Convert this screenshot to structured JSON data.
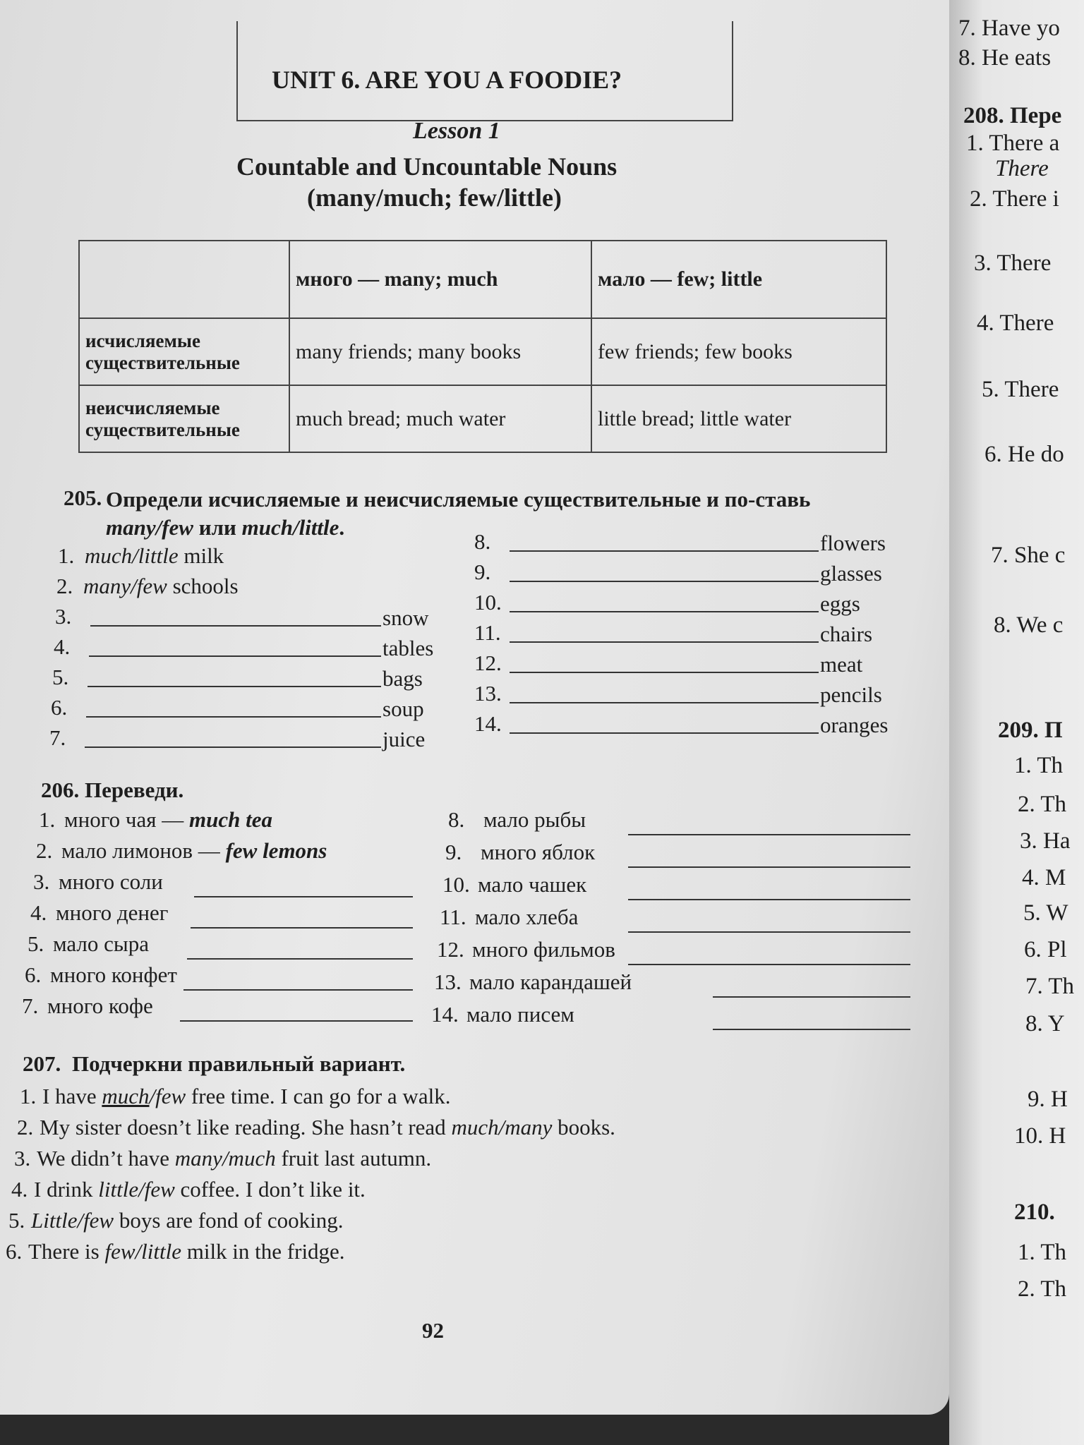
{
  "header": {
    "unit": "UNIT 6. ARE YOU A FOODIE?",
    "lesson": "Lesson 1",
    "title": "Countable and Uncountable Nouns",
    "subtitle": "(many/much; few/little)"
  },
  "table": {
    "columns": [
      "много — many; much",
      "мало — few; little"
    ],
    "rows": [
      {
        "label": "исчисляемые существительные",
        "cells": [
          "many friends; many books",
          "few friends; few books"
        ]
      },
      {
        "label": "неисчисляемые существительные",
        "cells": [
          "much bread; much water",
          "little bread; little water"
        ]
      }
    ]
  },
  "ex205": {
    "number": "205.",
    "instruction": [
      {
        "text": "Определи исчисляемые и неисчисляемые существительные и по-ставь "
      },
      {
        "text": "many/few",
        "italic": true
      },
      {
        "text": " или "
      },
      {
        "text": "much/little",
        "italic": true
      },
      {
        "text": "."
      }
    ],
    "items": [
      {
        "num": "1.",
        "answer": "much/little",
        "noun": "milk"
      },
      {
        "num": "2.",
        "answer": "many/few",
        "noun": "schools"
      },
      {
        "num": "3.",
        "noun": "snow"
      },
      {
        "num": "4.",
        "noun": "tables"
      },
      {
        "num": "5.",
        "noun": "bags"
      },
      {
        "num": "6.",
        "noun": "soup"
      },
      {
        "num": "7.",
        "noun": "juice"
      },
      {
        "num": "8.",
        "noun": "flowers"
      },
      {
        "num": "9.",
        "noun": "glasses"
      },
      {
        "num": "10.",
        "noun": "eggs"
      },
      {
        "num": "11.",
        "noun": "chairs"
      },
      {
        "num": "12.",
        "noun": "meat"
      },
      {
        "num": "13.",
        "noun": "pencils"
      },
      {
        "num": "14.",
        "noun": "oranges"
      }
    ]
  },
  "ex206": {
    "number": "206.",
    "instruction": "Переведи.",
    "items": [
      {
        "num": "1.",
        "ru": "много чая —",
        "answer": "much tea"
      },
      {
        "num": "2.",
        "ru": "мало лимонов —",
        "answer": "few lemons"
      },
      {
        "num": "3.",
        "ru": "много соли"
      },
      {
        "num": "4.",
        "ru": "много денег"
      },
      {
        "num": "5.",
        "ru": "мало сыра"
      },
      {
        "num": "6.",
        "ru": "много конфет"
      },
      {
        "num": "7.",
        "ru": "много кофе"
      },
      {
        "num": "8.",
        "ru": "мало рыбы"
      },
      {
        "num": "9.",
        "ru": "много яблок"
      },
      {
        "num": "10.",
        "ru": "мало чашек"
      },
      {
        "num": "11.",
        "ru": "мало хлеба"
      },
      {
        "num": "12.",
        "ru": "много фильмов"
      },
      {
        "num": "13.",
        "ru": "мало карандашей"
      },
      {
        "num": "14.",
        "ru": "мало писем"
      }
    ]
  },
  "ex207": {
    "number": "207.",
    "instruction": "Подчеркни правильный вариант.",
    "sentences": [
      {
        "num": "1.",
        "parts": [
          {
            "text": "I have "
          },
          {
            "text": "much",
            "italic": true,
            "underline": true
          },
          {
            "text": "/few",
            "italic": true
          },
          {
            "text": " free time. I can go for a walk."
          }
        ]
      },
      {
        "num": "2.",
        "parts": [
          {
            "text": "My sister doesn’t like reading. She hasn’t read "
          },
          {
            "text": "much/many",
            "italic": true
          },
          {
            "text": " books."
          }
        ]
      },
      {
        "num": "3.",
        "parts": [
          {
            "text": "We didn’t have "
          },
          {
            "text": "many/much",
            "italic": true
          },
          {
            "text": " fruit last autumn."
          }
        ]
      },
      {
        "num": "4.",
        "parts": [
          {
            "text": "I drink "
          },
          {
            "text": "little/few",
            "italic": true
          },
          {
            "text": " coffee. I don’t like it."
          }
        ]
      },
      {
        "num": "5.",
        "parts": [
          {
            "text": "Little/few",
            "italic": true
          },
          {
            "text": " boys are fond of cooking."
          }
        ]
      },
      {
        "num": "6.",
        "parts": [
          {
            "text": "There is "
          },
          {
            "text": "few/little",
            "italic": true
          },
          {
            "text": " milk in the fridge."
          }
        ]
      }
    ]
  },
  "page_number": "92",
  "right_page": {
    "lines": [
      "7. Have yo",
      "8. He eats",
      "208. Пере",
      "1. There a",
      "There",
      "2. There i",
      "3. There",
      "4. There",
      "5. There",
      "6. He do",
      "7. She c",
      "8. We c",
      "209. П",
      "1. Th",
      "2. Th",
      "3. Ha",
      "4. M",
      "5. W",
      "6. Pl",
      "7. Th",
      "8. Y",
      "9. H",
      "10. H",
      "210.",
      "1. Th",
      "2. Th"
    ]
  }
}
